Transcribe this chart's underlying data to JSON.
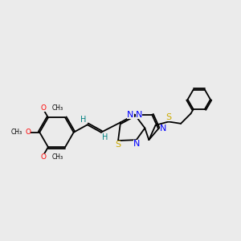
{
  "background_color": "#ebebeb",
  "bond_color": "#000000",
  "N_color": "#0000ff",
  "S_color": "#ccaa00",
  "O_color": "#ff0000",
  "H_color": "#008080",
  "figsize": [
    3.0,
    3.0
  ],
  "dpi": 100,
  "xlim": [
    0,
    10
  ],
  "ylim": [
    0,
    10
  ]
}
